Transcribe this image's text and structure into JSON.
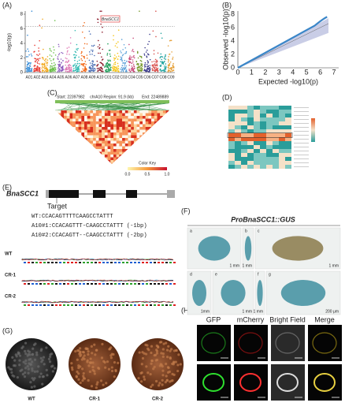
{
  "panel_labels": [
    "(A)",
    "(B)",
    "(C)",
    "(D)",
    "(E)",
    "(F)",
    "(G)",
    "(H)"
  ],
  "manhattan": {
    "y_label": "-log10(p)",
    "yticks": [
      "0",
      "2",
      "4",
      "6",
      "8"
    ],
    "chromosomes": [
      "A01",
      "A02",
      "A03",
      "A04",
      "A05",
      "A06",
      "A07",
      "A08",
      "A09",
      "A10",
      "C01",
      "C02",
      "C03",
      "C04",
      "C05",
      "C06",
      "C07",
      "C08",
      "C09"
    ],
    "highlight": "BnaSCC1"
  },
  "qq": {
    "y_label": "Observed -log10(p)",
    "x_label": "Expected -log10(p)",
    "xticks": [
      "0",
      "1",
      "2",
      "3",
      "4",
      "5",
      "6",
      "7"
    ],
    "yticks": [
      "0",
      "2",
      "4",
      "6",
      "8"
    ]
  },
  "ld": {
    "start": "Start: 22397982",
    "region": "chrA10 Region: 91.9 (kb)",
    "end": "End: 22489889",
    "key_title": "Color Key",
    "key_ticks": [
      "0.0",
      "0.5",
      "1.0"
    ]
  },
  "editing": {
    "gene": "BnaSCC1",
    "target": "Target",
    "sequences": [
      "WT:CCACAGTTTTCAAGCCTATTT",
      "A10#1:CCACAGTTT-CAAGCCTATTT (-1bp)",
      "A10#2:CCACAGTT--CAAGCCTATTT (-2bp)"
    ],
    "lines": [
      "WT",
      "CR-1",
      "CR-2"
    ]
  },
  "gus": {
    "title": "ProBnaSCC1::GUS",
    "subpanels": [
      "a",
      "b",
      "c",
      "d",
      "e",
      "f",
      "g"
    ],
    "scales": [
      "1 mm",
      "1 mm",
      "1 mm",
      "1mm",
      "1 mm",
      "1 mm",
      "200 μm"
    ]
  },
  "seeds": {
    "lines": [
      "WT",
      "CR-1",
      "CR-2"
    ]
  },
  "localization": {
    "columns": [
      "GFP",
      "mCherry",
      "Bright Field",
      "Merge"
    ]
  }
}
